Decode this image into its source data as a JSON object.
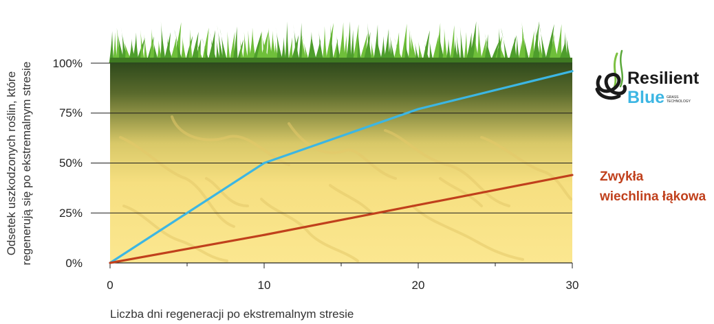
{
  "chart_data": {
    "type": "line",
    "xlabel": "Liczba dni regeneracji po ekstremalnym stresie",
    "ylabel_lines": [
      "Odsetek uszkodzonych roślin, które",
      "regenerują się po ekstremalnym stresie"
    ],
    "x_ticks": [
      0,
      10,
      20,
      30
    ],
    "y_ticks": [
      "0%",
      "25%",
      "50%",
      "75%",
      "100%"
    ],
    "y_tick_values": [
      0,
      25,
      50,
      75,
      100
    ],
    "xlim": [
      0,
      30
    ],
    "ylim": [
      0,
      100
    ],
    "grid": "horizontal",
    "series": [
      {
        "name": "Resilient Blue",
        "color": "#3cb6e3",
        "x": [
          0,
          10,
          20,
          30
        ],
        "y": [
          0,
          50,
          77,
          96
        ]
      },
      {
        "name": "Zwykła wiechlina łąkowa",
        "color": "#c0401c",
        "x": [
          0,
          10,
          20,
          30
        ],
        "y": [
          0,
          14,
          29,
          44
        ]
      }
    ]
  },
  "legend": {
    "regular_line1": "Zwykła",
    "regular_line2": "wiechlina łąkowa",
    "regular_color": "#c0401c"
  },
  "logo": {
    "word1": "Resilient",
    "word2": "Blue",
    "tag1": "GRASS",
    "tag2": "TECHNOLOGY",
    "dark_color": "#1a1a1a",
    "blue_color": "#3cb6e3",
    "green_color": "#7dc142"
  },
  "colors": {
    "grass": "#6fbf3a",
    "soil_top": "#2f4a1c",
    "soil_bottom": "#fbe58a"
  }
}
